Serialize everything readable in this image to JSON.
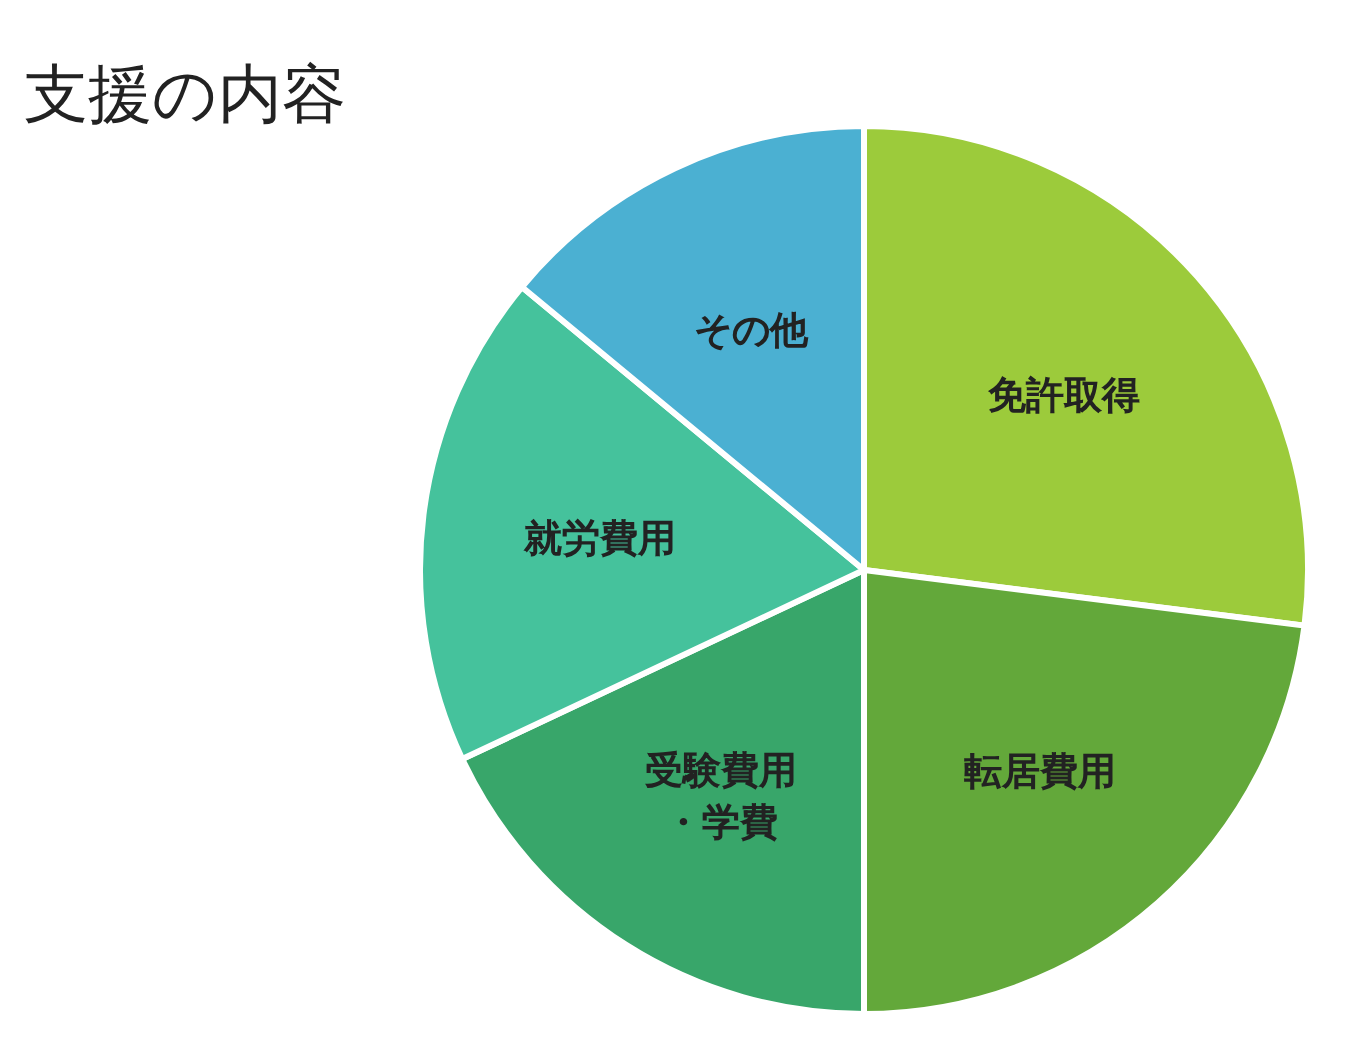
{
  "chart_data": {
    "type": "pie",
    "title": "支援の内容",
    "categories": [
      "免許取得",
      "転居費用",
      "受験費用・学費",
      "就労費用",
      "その他"
    ],
    "values": [
      27,
      23,
      18,
      18,
      14
    ],
    "colors": [
      "#9ccb3b",
      "#63a83a",
      "#38a66a",
      "#45c29c",
      "#4bb0d2"
    ]
  }
}
